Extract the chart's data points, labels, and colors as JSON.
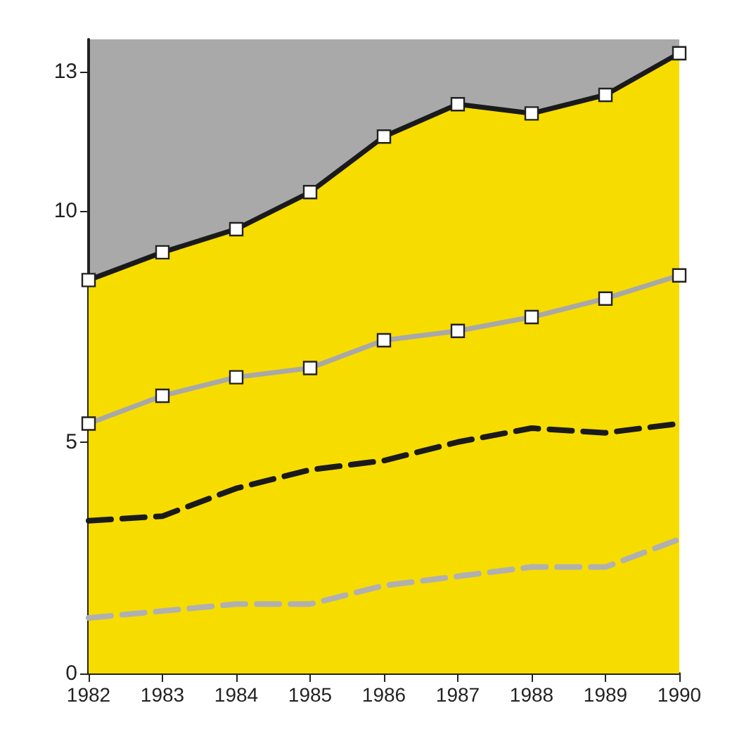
{
  "chart_data": {
    "type": "line",
    "categories": [
      "1982",
      "1983",
      "1984",
      "1985",
      "1986",
      "1987",
      "1988",
      "1989",
      "1990"
    ],
    "series": [
      {
        "type": "area",
        "color": "#f7dc00",
        "marker": "square",
        "line_style": "solid",
        "values": [
          8.5,
          9.1,
          9.6,
          10.4,
          11.6,
          12.3,
          12.1,
          12.5,
          13.4
        ]
      },
      {
        "color": "#a8a8a8",
        "marker": "square",
        "line_style": "solid",
        "values": [
          5.4,
          6.0,
          6.4,
          6.6,
          7.2,
          7.4,
          7.7,
          8.1,
          8.6
        ]
      },
      {
        "color": "#1a1a1a",
        "marker": "none",
        "line_style": "dashed",
        "values": [
          3.3,
          3.4,
          4.0,
          4.4,
          4.6,
          5.0,
          5.3,
          5.2,
          5.4
        ]
      },
      {
        "color": "#b0b0b0",
        "marker": "none",
        "line_style": "dashed",
        "values": [
          1.2,
          1.35,
          1.5,
          1.5,
          1.9,
          2.1,
          2.3,
          2.3,
          2.9
        ]
      }
    ],
    "ylim": [
      0,
      13.7
    ],
    "yticks": [
      0,
      5,
      10,
      13
    ],
    "grid": false
  }
}
